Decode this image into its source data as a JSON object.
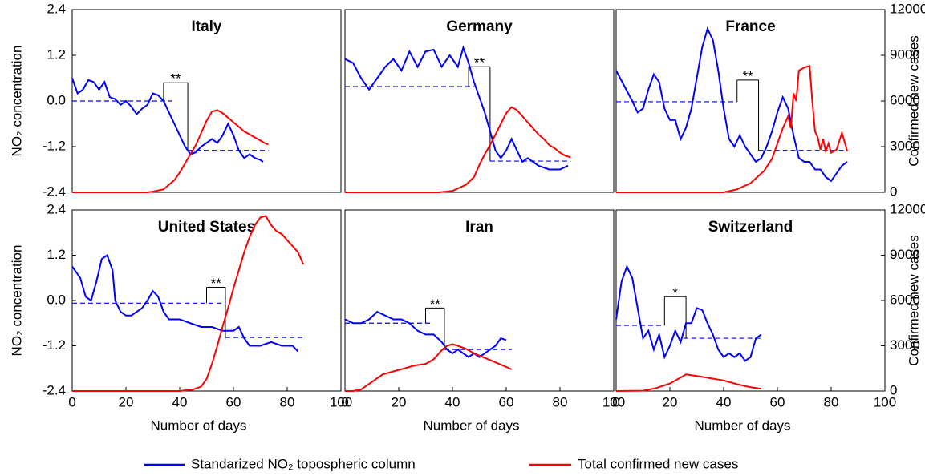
{
  "chart_data": [
    {
      "type": "line",
      "title": "Italy",
      "ylabel": "NO₂ concentration",
      "xlim": [
        0,
        100
      ],
      "ylim": [
        -2.4,
        2.4
      ],
      "y2lim": [
        0,
        12000
      ],
      "yticks": [
        -2.4,
        -1.2,
        {
          "value": 0,
          "label": "0.0"
        },
        1.2,
        2.4
      ],
      "series": [
        {
          "name": "Standarized NO₂ topospheric column",
          "color": "#0000ff",
          "x": [
            0,
            2,
            4,
            6,
            8,
            10,
            12,
            14,
            16,
            18,
            20,
            22,
            24,
            26,
            28,
            30,
            32,
            34,
            36,
            38,
            40,
            42,
            44,
            46,
            48,
            50,
            52,
            54,
            56,
            58,
            60,
            62,
            64,
            66,
            68,
            70,
            71
          ],
          "values": [
            0.6,
            0.2,
            0.3,
            0.55,
            0.5,
            0.3,
            0.5,
            0.1,
            0.05,
            -0.1,
            0.0,
            -0.15,
            -0.35,
            -0.2,
            -0.1,
            0.2,
            0.15,
            0.0,
            -0.3,
            -0.6,
            -0.9,
            -1.2,
            -1.4,
            -1.35,
            -1.2,
            -1.1,
            -1.0,
            -1.1,
            -0.9,
            -0.6,
            -0.9,
            -1.3,
            -1.5,
            -1.4,
            -1.5,
            -1.55,
            -1.6
          ]
        },
        {
          "name": "Total confirmed new cases",
          "color": "#ff0000",
          "axis": "y2",
          "x": [
            0,
            28,
            30,
            34,
            36,
            38,
            40,
            42,
            44,
            46,
            48,
            50,
            52,
            54,
            56,
            58,
            60,
            62,
            64,
            66,
            68,
            70,
            72,
            73
          ],
          "values": [
            0,
            0,
            50,
            200,
            500,
            800,
            1300,
            1900,
            2500,
            3100,
            3900,
            4700,
            5300,
            5400,
            5200,
            4900,
            4600,
            4300,
            4000,
            3800,
            3600,
            3400,
            3200,
            3150
          ]
        }
      ],
      "means": [
        {
          "x": [
            0,
            37
          ],
          "value": 0
        },
        {
          "x": [
            43,
            73
          ],
          "value": -1.3
        }
      ],
      "bracket": {
        "x": [
          34,
          43
        ],
        "y": 0.48,
        "label": "**"
      }
    },
    {
      "type": "line",
      "title": "Germany",
      "xlim": [
        0,
        100
      ],
      "ylim": [
        -2.4,
        2.4
      ],
      "y2lim": [
        0,
        12000
      ],
      "series": [
        {
          "color": "#0000ff",
          "x": [
            0,
            3,
            6,
            9,
            12,
            15,
            18,
            21,
            24,
            27,
            30,
            33,
            36,
            39,
            42,
            44,
            46,
            48,
            50,
            52,
            54,
            56,
            58,
            60,
            62,
            64,
            66,
            68,
            72,
            76,
            80,
            83
          ],
          "values": [
            1.1,
            1.0,
            0.6,
            0.3,
            0.6,
            0.9,
            1.1,
            0.8,
            1.3,
            0.9,
            1.3,
            1.35,
            0.9,
            1.2,
            0.9,
            1.4,
            1.0,
            0.5,
            0.1,
            -0.3,
            -0.8,
            -1.3,
            -1.5,
            -1.3,
            -1.0,
            -1.3,
            -1.6,
            -1.5,
            -1.7,
            -1.8,
            -1.8,
            -1.7
          ]
        },
        {
          "color": "#ff0000",
          "axis": "y2",
          "x": [
            0,
            35,
            40,
            45,
            48,
            50,
            52,
            54,
            56,
            58,
            60,
            62,
            64,
            66,
            68,
            70,
            72,
            74,
            76,
            78,
            80,
            82,
            84
          ],
          "values": [
            0,
            0,
            100,
            500,
            1000,
            1800,
            2500,
            3100,
            3800,
            4500,
            5200,
            5600,
            5400,
            5000,
            4600,
            4200,
            3800,
            3500,
            3100,
            2900,
            2600,
            2400,
            2300
          ]
        }
      ],
      "means": [
        {
          "x": [
            0,
            48
          ],
          "value": 0.38
        },
        {
          "x": [
            54,
            84
          ],
          "value": -1.58
        }
      ],
      "bracket": {
        "x": [
          46,
          54
        ],
        "y": 0.9,
        "label": "**"
      }
    },
    {
      "type": "line",
      "title": "France",
      "y2label": "Confirmed new cases",
      "xlim": [
        0,
        100
      ],
      "ylim": [
        -2.4,
        2.4
      ],
      "y2lim": [
        0,
        12000
      ],
      "y2ticks": [
        0,
        3000,
        6000,
        9000,
        12000
      ],
      "series": [
        {
          "color": "#0000ff",
          "x": [
            0,
            3,
            6,
            8,
            10,
            12,
            14,
            16,
            18,
            20,
            22,
            24,
            26,
            28,
            30,
            32,
            34,
            36,
            38,
            40,
            42,
            44,
            46,
            48,
            50,
            52,
            54,
            56,
            58,
            60,
            62,
            64,
            66,
            68,
            70,
            72,
            74,
            76,
            78,
            80,
            82,
            84,
            86
          ],
          "values": [
            0.8,
            0.4,
            0.0,
            -0.3,
            -0.2,
            0.3,
            0.7,
            0.5,
            -0.2,
            -0.5,
            -0.5,
            -1.0,
            -0.7,
            -0.2,
            0.6,
            1.4,
            1.9,
            1.6,
            0.8,
            -0.2,
            -1.0,
            -1.2,
            -0.9,
            -1.2,
            -1.4,
            -1.6,
            -1.5,
            -1.2,
            -0.8,
            -0.3,
            0.1,
            -0.2,
            -0.9,
            -1.5,
            -1.6,
            -1.6,
            -1.8,
            -1.8,
            -2.0,
            -2.1,
            -1.9,
            -1.7,
            -1.6
          ]
        },
        {
          "color": "#ff0000",
          "axis": "y2",
          "x": [
            0,
            40,
            45,
            50,
            55,
            58,
            60,
            62,
            64,
            65,
            66,
            67,
            68,
            70,
            72,
            73,
            74,
            75,
            76,
            77,
            78,
            79,
            80,
            82,
            84,
            86
          ],
          "values": [
            0,
            0,
            200,
            600,
            1400,
            2200,
            3200,
            4200,
            5000,
            4200,
            6500,
            6000,
            8000,
            8200,
            8300,
            6000,
            4000,
            3600,
            2800,
            3500,
            2700,
            3200,
            2600,
            2800,
            3900,
            2700
          ]
        }
      ],
      "means": [
        {
          "x": [
            0,
            45
          ],
          "value": -0.02
        },
        {
          "x": [
            53,
            86
          ],
          "value": -1.3
        }
      ],
      "bracket": {
        "x": [
          45,
          53
        ],
        "y": 0.55,
        "label": "**"
      }
    },
    {
      "type": "line",
      "title": "United States",
      "ylabel": "NO₂ concentration",
      "xlabel": "Number of days",
      "xlim": [
        0,
        100
      ],
      "ylim": [
        -2.4,
        2.4
      ],
      "y2lim": [
        0,
        12000
      ],
      "yticks": [
        -2.4,
        -1.2,
        {
          "value": 0,
          "label": "0.0"
        },
        1.2,
        2.4
      ],
      "xticks": [
        0,
        20,
        40,
        60,
        80,
        100
      ],
      "series": [
        {
          "color": "#0000ff",
          "x": [
            0,
            3,
            5,
            7,
            9,
            11,
            13,
            15,
            16,
            18,
            20,
            22,
            24,
            26,
            28,
            30,
            32,
            34,
            36,
            40,
            44,
            48,
            52,
            56,
            60,
            62,
            64,
            66,
            70,
            74,
            78,
            82,
            84
          ],
          "values": [
            0.9,
            0.6,
            0.1,
            0.0,
            0.5,
            1.1,
            1.2,
            0.8,
            0.0,
            -0.3,
            -0.4,
            -0.4,
            -0.3,
            -0.2,
            0.0,
            0.25,
            0.1,
            -0.3,
            -0.5,
            -0.5,
            -0.6,
            -0.7,
            -0.7,
            -0.8,
            -0.8,
            -0.7,
            -1.0,
            -1.2,
            -1.2,
            -1.1,
            -1.2,
            -1.2,
            -1.35
          ]
        },
        {
          "color": "#ff0000",
          "axis": "y2",
          "x": [
            0,
            40,
            45,
            48,
            50,
            52,
            54,
            56,
            58,
            60,
            62,
            64,
            66,
            68,
            70,
            72,
            74,
            76,
            78,
            80,
            82,
            84,
            86
          ],
          "values": [
            0,
            0,
            100,
            300,
            800,
            1800,
            3000,
            4300,
            5500,
            6800,
            8000,
            9200,
            10200,
            11000,
            11500,
            11600,
            11000,
            10600,
            10400,
            10000,
            9600,
            9200,
            8400
          ]
        }
      ],
      "means": [
        {
          "x": [
            0,
            57
          ],
          "value": -0.07
        },
        {
          "x": [
            57,
            86
          ],
          "value": -0.98
        }
      ],
      "bracket": {
        "x": [
          50,
          57
        ],
        "y": 0.35,
        "label": "**"
      }
    },
    {
      "type": "line",
      "title": "Iran",
      "xlabel": "Number of days",
      "xlim": [
        0,
        100
      ],
      "ylim": [
        -2.4,
        2.4
      ],
      "y2lim": [
        0,
        12000
      ],
      "xticks": [
        0,
        20,
        40,
        60,
        80,
        100
      ],
      "series": [
        {
          "color": "#0000ff",
          "x": [
            0,
            3,
            6,
            9,
            12,
            15,
            18,
            21,
            24,
            27,
            30,
            33,
            36,
            38,
            40,
            42,
            44,
            46,
            48,
            50,
            52,
            54,
            56,
            58,
            60
          ],
          "values": [
            -0.5,
            -0.6,
            -0.6,
            -0.5,
            -0.3,
            -0.4,
            -0.5,
            -0.5,
            -0.6,
            -0.8,
            -0.9,
            -0.9,
            -1.1,
            -1.3,
            -1.4,
            -1.3,
            -1.4,
            -1.5,
            -1.4,
            -1.5,
            -1.4,
            -1.3,
            -1.2,
            -1.0,
            -1.05
          ]
        },
        {
          "color": "#ff0000",
          "axis": "y2",
          "x": [
            0,
            3,
            6,
            10,
            14,
            18,
            22,
            26,
            30,
            33,
            36,
            38,
            40,
            42,
            45,
            48,
            52,
            56,
            60,
            62
          ],
          "values": [
            0,
            0,
            100,
            600,
            1100,
            1300,
            1500,
            1700,
            1800,
            2100,
            2700,
            3000,
            3100,
            3000,
            2800,
            2500,
            2200,
            1900,
            1600,
            1430
          ]
        }
      ],
      "means": [
        {
          "x": [
            0,
            32
          ],
          "value": -0.6
        },
        {
          "x": [
            37,
            62
          ],
          "value": -1.3
        }
      ],
      "bracket": {
        "x": [
          30,
          37
        ],
        "y": -0.2,
        "label": "**"
      }
    },
    {
      "type": "line",
      "title": "Switzerland",
      "xlabel": "Number of days",
      "y2label": "Confirmed new cases",
      "xlim": [
        0,
        100
      ],
      "ylim": [
        -2.4,
        2.4
      ],
      "y2lim": [
        0,
        12000
      ],
      "xticks": [
        0,
        20,
        40,
        60,
        80,
        100
      ],
      "y2ticks": [
        0,
        3000,
        6000,
        9000,
        12000
      ],
      "series": [
        {
          "color": "#0000ff",
          "x": [
            0,
            2,
            4,
            6,
            8,
            10,
            12,
            14,
            16,
            18,
            20,
            22,
            24,
            26,
            28,
            30,
            32,
            34,
            36,
            38,
            40,
            42,
            44,
            46,
            48,
            50,
            52,
            54
          ],
          "values": [
            -0.5,
            0.5,
            0.9,
            0.6,
            -0.2,
            -1.0,
            -0.8,
            -1.3,
            -0.9,
            -1.5,
            -1.2,
            -0.8,
            -1.1,
            -0.6,
            -0.6,
            -0.2,
            -0.25,
            -0.6,
            -0.9,
            -1.3,
            -1.5,
            -1.4,
            -1.5,
            -1.4,
            -1.6,
            -1.5,
            -1.0,
            -0.9
          ]
        },
        {
          "color": "#ff0000",
          "axis": "y2",
          "x": [
            0,
            10,
            15,
            20,
            24,
            26,
            30,
            35,
            40,
            45,
            50,
            54
          ],
          "values": [
            0,
            20,
            200,
            500,
            900,
            1100,
            1000,
            850,
            700,
            450,
            250,
            150
          ]
        }
      ],
      "means": [
        {
          "x": [
            0,
            18
          ],
          "value": -0.66
        },
        {
          "x": [
            25,
            54
          ],
          "value": -1.0
        }
      ],
      "bracket": {
        "x": [
          18,
          26
        ],
        "y": 0.1,
        "label": "*"
      }
    }
  ]
}
